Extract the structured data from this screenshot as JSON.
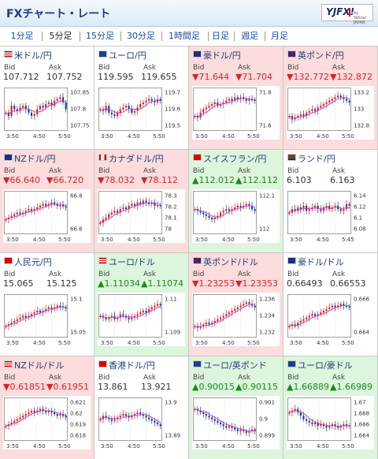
{
  "header": {
    "title": "FXチャート・レート",
    "logo": "YJFX!",
    "logo_sub": "by Yahoo! JAPAN"
  },
  "tabs": [
    {
      "label": "1分足",
      "active": false
    },
    {
      "label": "5分足",
      "active": true
    },
    {
      "label": "15分足",
      "active": false
    },
    {
      "label": "30分足",
      "active": false
    },
    {
      "label": "1時間足",
      "active": false
    },
    {
      "label": "日足",
      "active": false
    },
    {
      "label": "週足",
      "active": false
    },
    {
      "label": "月足",
      "active": false
    }
  ],
  "labels": {
    "bid": "Bid",
    "ask": "Ask"
  },
  "colors": {
    "down_bg": "#fcdcdc",
    "up_bg": "#dcf5dc",
    "down_text": "#d8222b",
    "up_text": "#1c8a1c",
    "candle_up": "#d8222b",
    "candle_down": "#1c3f94",
    "ma": "#c040c0"
  },
  "pairs": [
    {
      "name": "米ドル/円",
      "flag": "us",
      "state": "none",
      "bid": "107.712",
      "ask": "107.752",
      "ylabels": [
        "107.85",
        "107.8",
        "107.75"
      ],
      "xlabels": [
        "3:50",
        "4:50",
        "5:50"
      ],
      "trend": [
        0.4,
        0.3,
        0.6,
        0.5,
        0.45,
        0.55,
        0.6,
        0.5,
        0.4,
        0.3,
        0.35,
        0.5,
        0.6,
        0.55,
        0.65,
        0.7,
        0.6,
        0.75,
        0.8,
        0.85,
        0.7,
        0.5
      ]
    },
    {
      "name": "ユーロ/円",
      "flag": "eu",
      "state": "none",
      "bid": "119.595",
      "ask": "119.655",
      "ylabels": [
        "119.7",
        "119.6",
        "119.5"
      ],
      "xlabels": [
        "3:50",
        "4:50",
        "5:50"
      ],
      "trend": [
        0.5,
        0.45,
        0.6,
        0.4,
        0.35,
        0.3,
        0.4,
        0.5,
        0.55,
        0.6,
        0.5,
        0.4,
        0.45,
        0.55,
        0.65,
        0.7,
        0.75,
        0.8,
        0.75,
        0.7,
        0.8,
        0.75
      ]
    },
    {
      "name": "豪ドル/円",
      "flag": "au",
      "state": "down",
      "bid": "▼71.644",
      "ask": "▼71.704",
      "ylabels": [
        "71.8",
        "71.6"
      ],
      "xlabels": [
        "3:50",
        "4:50",
        "5:50"
      ],
      "trend": [
        0.3,
        0.25,
        0.4,
        0.5,
        0.55,
        0.6,
        0.65,
        0.7,
        0.6,
        0.65,
        0.7,
        0.75,
        0.8,
        0.75,
        0.85,
        0.8,
        0.85,
        0.8,
        0.75,
        0.8,
        0.78,
        0.75
      ]
    },
    {
      "name": "英ポンド/円",
      "flag": "gb",
      "state": "down",
      "bid": "▼132.772",
      "ask": "▼132.872",
      "ylabels": [
        "133.2",
        "133",
        "132.8"
      ],
      "xlabels": [
        "3:50",
        "4:50",
        "5:50"
      ],
      "trend": [
        0.3,
        0.2,
        0.25,
        0.3,
        0.35,
        0.3,
        0.4,
        0.45,
        0.5,
        0.45,
        0.55,
        0.6,
        0.65,
        0.7,
        0.75,
        0.8,
        0.85,
        0.9,
        0.85,
        0.8,
        0.75,
        0.7
      ]
    },
    {
      "name": "NZドル/円",
      "flag": "nz",
      "state": "down",
      "bid": "▼66.640",
      "ask": "▼66.720",
      "ylabels": [
        "66.8",
        "66.6"
      ],
      "xlabels": [
        "3:50",
        "4:50",
        "5:50"
      ],
      "trend": [
        0.3,
        0.35,
        0.4,
        0.45,
        0.5,
        0.45,
        0.5,
        0.55,
        0.6,
        0.55,
        0.6,
        0.65,
        0.7,
        0.75,
        0.7,
        0.75,
        0.8,
        0.75,
        0.7,
        0.72,
        0.68,
        0.65
      ]
    },
    {
      "name": "カナダドル/円",
      "flag": "ca",
      "state": "down",
      "bid": "▼78.032",
      "ask": "▼78.112",
      "ylabels": [
        "78.3",
        "78.2",
        "78.1",
        "78"
      ],
      "xlabels": [
        "3:50",
        "4:50",
        "5:50"
      ],
      "trend": [
        0.2,
        0.3,
        0.35,
        0.45,
        0.5,
        0.55,
        0.5,
        0.6,
        0.65,
        0.6,
        0.7,
        0.75,
        0.7,
        0.8,
        0.75,
        0.85,
        0.8,
        0.75,
        0.8,
        0.7,
        0.72,
        0.7
      ]
    },
    {
      "name": "スイスフラン/円",
      "flag": "ch",
      "state": "up",
      "bid": "▲112.012",
      "ask": "▲112.112",
      "ylabels": [
        "112.1",
        "112"
      ],
      "xlabels": [
        "3:50",
        "4:50",
        "5:50"
      ],
      "trend": [
        0.6,
        0.55,
        0.5,
        0.45,
        0.4,
        0.35,
        0.3,
        0.35,
        0.4,
        0.5,
        0.55,
        0.6,
        0.55,
        0.6,
        0.65,
        0.7,
        0.65,
        0.7,
        0.75,
        0.7,
        0.6,
        0.55
      ]
    },
    {
      "name": "ランド/円",
      "flag": "za",
      "state": "none",
      "bid": "6.103",
      "ask": "6.163",
      "ylabels": [
        "6.14",
        "6.12",
        "6.1",
        "6.08"
      ],
      "xlabels": [
        "3:50",
        "4:50",
        "5:45"
      ],
      "trend": [
        0.5,
        0.6,
        0.55,
        0.65,
        0.6,
        0.7,
        0.55,
        0.6,
        0.65,
        0.7,
        0.6,
        0.55,
        0.65,
        0.7,
        0.6,
        0.65,
        0.7,
        0.6,
        0.55,
        0.6,
        0.75,
        0.7
      ]
    },
    {
      "name": "人民元/円",
      "flag": "cn",
      "state": "none",
      "bid": "15.065",
      "ask": "15.125",
      "ylabels": [
        "15.1",
        "15.05"
      ],
      "xlabels": [
        "3:50",
        "4:50",
        "5:50"
      ],
      "trend": [
        0.2,
        0.25,
        0.3,
        0.35,
        0.4,
        0.45,
        0.5,
        0.45,
        0.5,
        0.55,
        0.6,
        0.65,
        0.6,
        0.65,
        0.7,
        0.75,
        0.7,
        0.75,
        0.8,
        0.78,
        0.75,
        0.72
      ]
    },
    {
      "name": "ユーロ/ドル",
      "flag": "us",
      "state": "up",
      "bid": "▲1.11034",
      "ask": "▲1.11074",
      "ylabels": [
        "1.11",
        "1.109"
      ],
      "xlabels": [
        "3:50",
        "4:50",
        "5:50"
      ],
      "trend": [
        0.5,
        0.45,
        0.4,
        0.45,
        0.5,
        0.4,
        0.45,
        0.55,
        0.5,
        0.45,
        0.4,
        0.45,
        0.5,
        0.55,
        0.6,
        0.65,
        0.6,
        0.7,
        0.75,
        0.8,
        0.85,
        0.8
      ]
    },
    {
      "name": "英ポンド/ドル",
      "flag": "gb",
      "state": "down",
      "bid": "▼1.23253",
      "ask": "▼1.23353",
      "ylabels": [
        "1.236",
        "1.234",
        "1.232"
      ],
      "xlabels": [
        "3:50",
        "4:50",
        "5:50"
      ],
      "trend": [
        0.2,
        0.15,
        0.2,
        0.25,
        0.3,
        0.25,
        0.3,
        0.35,
        0.4,
        0.45,
        0.5,
        0.55,
        0.6,
        0.65,
        0.7,
        0.75,
        0.8,
        0.85,
        0.9,
        0.85,
        0.8,
        0.75
      ]
    },
    {
      "name": "豪ドル/ドル",
      "flag": "au",
      "state": "none",
      "bid": "0.66493",
      "ask": "0.66553",
      "ylabels": [
        "0.666",
        "0.664"
      ],
      "xlabels": [
        "3:50",
        "4:50",
        "5:50"
      ],
      "trend": [
        0.2,
        0.25,
        0.2,
        0.3,
        0.35,
        0.4,
        0.45,
        0.5,
        0.55,
        0.5,
        0.55,
        0.6,
        0.65,
        0.7,
        0.75,
        0.8,
        0.75,
        0.8,
        0.85,
        0.8,
        0.78,
        0.75
      ]
    },
    {
      "name": "NZドル/ドル",
      "flag": "us",
      "state": "down",
      "bid": "▼0.61851",
      "ask": "▼0.61951",
      "ylabels": [
        "0.621",
        "0.62",
        "0.619",
        "0.618"
      ],
      "xlabels": [
        "3:50",
        "4:50",
        "5:50"
      ],
      "trend": [
        0.3,
        0.35,
        0.4,
        0.45,
        0.5,
        0.55,
        0.6,
        0.65,
        0.7,
        0.75,
        0.7,
        0.75,
        0.8,
        0.75,
        0.7,
        0.75,
        0.7,
        0.65,
        0.6,
        0.65,
        0.6,
        0.55
      ]
    },
    {
      "name": "香港ドル/円",
      "flag": "hk",
      "state": "none",
      "bid": "13.861",
      "ask": "13.921",
      "ylabels": [
        "13.9",
        "13.89"
      ],
      "xlabels": [
        "3:50",
        "4:50",
        "5:50"
      ],
      "trend": [
        0.5,
        0.6,
        0.55,
        0.5,
        0.45,
        0.5,
        0.55,
        0.6,
        0.65,
        0.6,
        0.55,
        0.6,
        0.65,
        0.7,
        0.65,
        0.6,
        0.55,
        0.5,
        0.45,
        0.4,
        0.35,
        0.3
      ]
    },
    {
      "name": "ユーロ/英ポンド",
      "flag": "eu",
      "state": "up",
      "bid": "▲0.90015",
      "ask": "▲0.90115",
      "ylabels": [
        "0.901",
        "0.9",
        "0.899"
      ],
      "xlabels": [
        "3:50",
        "4:50",
        "5:50"
      ],
      "trend": [
        0.8,
        0.75,
        0.7,
        0.65,
        0.6,
        0.55,
        0.5,
        0.45,
        0.4,
        0.35,
        0.3,
        0.25,
        0.3,
        0.25,
        0.2,
        0.15,
        0.2,
        0.15,
        0.1,
        0.15,
        0.2,
        0.15
      ]
    },
    {
      "name": "ユーロ/豪ドル",
      "flag": "eu",
      "state": "up",
      "bid": "▲1.66889",
      "ask": "▲1.66989",
      "ylabels": [
        "1.67",
        "1.668",
        "1.666",
        "1.664"
      ],
      "xlabels": [
        "3:50",
        "4:50",
        "5:50"
      ],
      "trend": [
        0.7,
        0.75,
        0.8,
        0.7,
        0.6,
        0.5,
        0.45,
        0.4,
        0.35,
        0.4,
        0.3,
        0.35,
        0.3,
        0.25,
        0.3,
        0.35,
        0.3,
        0.25,
        0.3,
        0.35,
        0.3,
        0.32
      ]
    }
  ]
}
